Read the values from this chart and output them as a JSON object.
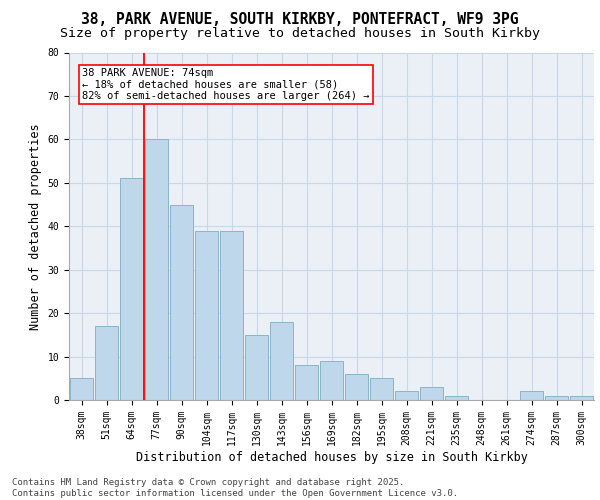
{
  "title_line1": "38, PARK AVENUE, SOUTH KIRKBY, PONTEFRACT, WF9 3PG",
  "title_line2": "Size of property relative to detached houses in South Kirkby",
  "xlabel": "Distribution of detached houses by size in South Kirkby",
  "ylabel": "Number of detached properties",
  "categories": [
    "38sqm",
    "51sqm",
    "64sqm",
    "77sqm",
    "90sqm",
    "104sqm",
    "117sqm",
    "130sqm",
    "143sqm",
    "156sqm",
    "169sqm",
    "182sqm",
    "195sqm",
    "208sqm",
    "221sqm",
    "235sqm",
    "248sqm",
    "261sqm",
    "274sqm",
    "287sqm",
    "300sqm"
  ],
  "values": [
    5,
    17,
    51,
    60,
    45,
    39,
    39,
    15,
    18,
    8,
    9,
    6,
    5,
    2,
    3,
    1,
    0,
    0,
    2,
    1,
    1
  ],
  "bar_color": "#bfd7ea",
  "bar_edge_color": "#8ab4cc",
  "grid_color": "#c8d8e8",
  "background_color": "#eaf0f6",
  "vline_color": "red",
  "vline_pos": 2.5,
  "annotation_text": "38 PARK AVENUE: 74sqm\n← 18% of detached houses are smaller (58)\n82% of semi-detached houses are larger (264) →",
  "ylim": [
    0,
    80
  ],
  "yticks": [
    0,
    10,
    20,
    30,
    40,
    50,
    60,
    70,
    80
  ],
  "footnote": "Contains HM Land Registry data © Crown copyright and database right 2025.\nContains public sector information licensed under the Open Government Licence v3.0.",
  "title_fontsize": 10.5,
  "subtitle_fontsize": 9.5,
  "axis_label_fontsize": 8.5,
  "tick_fontsize": 7,
  "annotation_fontsize": 7.5,
  "footnote_fontsize": 6.5
}
